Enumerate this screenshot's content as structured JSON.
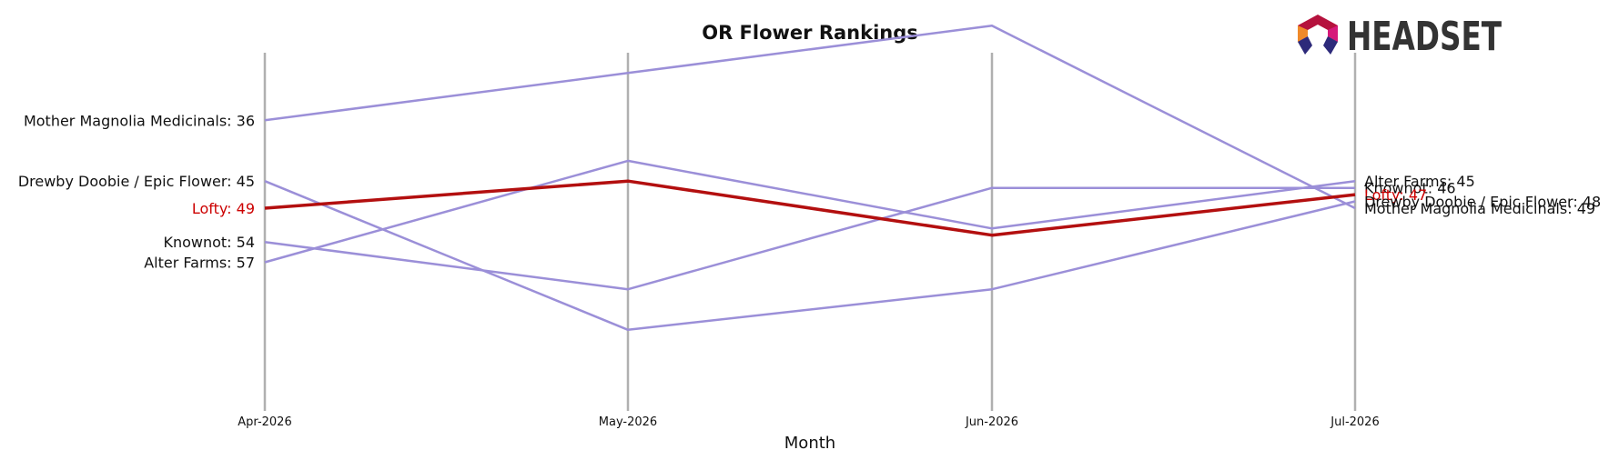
{
  "chart_data": {
    "type": "line",
    "title": "OR Flower Rankings",
    "xlabel": "Month",
    "ylabel": "",
    "categories": [
      "Apr-2026",
      "May-2026",
      "Jun-2026",
      "Jul-2026"
    ],
    "y_inverted": true,
    "ylim": [
      26,
      79
    ],
    "grid": "vertical lines at each month",
    "series": [
      {
        "name": "Mother Magnolia Medicinals",
        "values": [
          36,
          29,
          22,
          49
        ],
        "highlight": false
      },
      {
        "name": "Drewby Doobie / Epic Flower",
        "values": [
          45,
          67,
          61,
          48
        ],
        "highlight": false
      },
      {
        "name": "Lofty",
        "values": [
          49,
          45,
          53,
          47
        ],
        "highlight": true
      },
      {
        "name": "Knownot",
        "values": [
          54,
          61,
          46,
          46
        ],
        "highlight": false
      },
      {
        "name": "Alter Farms",
        "values": [
          57,
          42,
          52,
          45
        ],
        "highlight": false
      }
    ],
    "left_labels": [
      {
        "text": "Mother Magnolia Medicinals: 36",
        "series": 0
      },
      {
        "text": "Drewby Doobie / Epic Flower: 45",
        "series": 1
      },
      {
        "text": "Lofty: 49",
        "series": 2
      },
      {
        "text": "Knownot: 54",
        "series": 3
      },
      {
        "text": "Alter Farms: 57",
        "series": 4
      }
    ],
    "right_labels": [
      {
        "text": "Alter Farms: 45",
        "series": 4
      },
      {
        "text": "Knownot: 46",
        "series": 3
      },
      {
        "text": "Lofty: 47",
        "series": 2
      },
      {
        "text": "Drewby Doobie / Epic Flower: 48",
        "series": 1
      },
      {
        "text": "Mother Magnolia Medicinals: 49",
        "series": 0
      }
    ],
    "colors": {
      "normal": "#9b8fd8",
      "highlight": "#b30f0f",
      "grid": "#b0b0b0",
      "label_normal": "#111111",
      "label_highlight": "#cc0000"
    }
  },
  "logo": {
    "text": "HEADSET"
  }
}
